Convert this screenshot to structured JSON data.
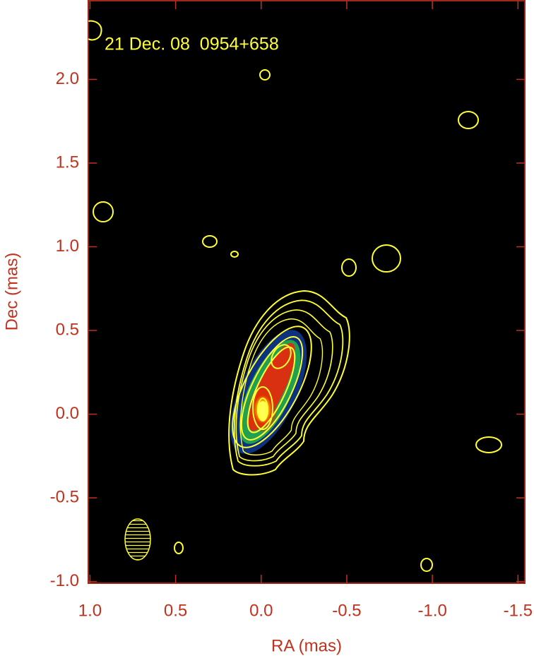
{
  "chart_data": {
    "type": "image",
    "title": "21 Dec. 08  0954+658",
    "x_label": "RA (mas)",
    "y_label": "Dec (mas)",
    "xlim": [
      1.01,
      -1.54
    ],
    "ylim": [
      -1.01,
      2.47
    ],
    "xticks": [
      {
        "value": 1,
        "label": "1.0"
      },
      0.5,
      {
        "value": 0,
        "label": "0.0"
      },
      -0.5,
      {
        "value": -1,
        "label": "-1.0"
      },
      -1.5
    ],
    "yticks": [
      {
        "value": -1,
        "label": "-1.0"
      },
      -0.5,
      {
        "value": 0,
        "label": "0.0"
      },
      0.5,
      {
        "value": 1,
        "label": "1.0"
      },
      1.5,
      {
        "value": 2,
        "label": "2.0"
      }
    ]
  }
}
